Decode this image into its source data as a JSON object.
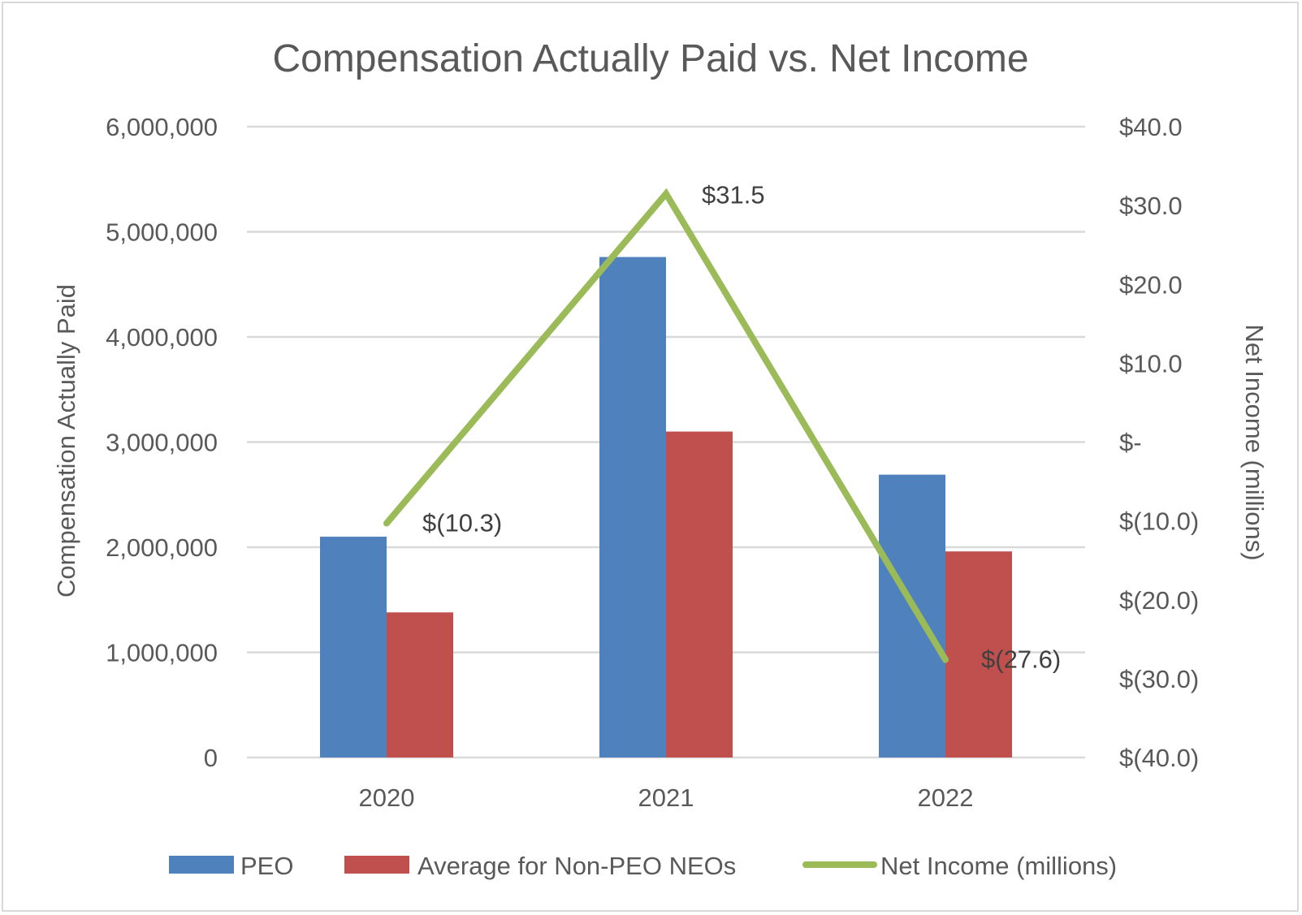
{
  "chart_data": {
    "type": "bar",
    "title": "Compensation Actually Paid vs. Net Income",
    "categories": [
      "2020",
      "2021",
      "2022"
    ],
    "y_left": {
      "label": "Compensation Actually Paid",
      "range": [
        0,
        6000000
      ],
      "ticks": [
        0,
        1000000,
        2000000,
        3000000,
        4000000,
        5000000,
        6000000
      ],
      "tick_labels": [
        "0",
        "1,000,000",
        "2,000,000",
        "3,000,000",
        "4,000,000",
        "5,000,000",
        "6,000,000"
      ]
    },
    "y_right": {
      "label": "Net Income (millions)",
      "range": [
        -40,
        40
      ],
      "ticks": [
        -40,
        -30,
        -20,
        -10,
        0,
        10,
        20,
        30,
        40
      ],
      "tick_labels": [
        "$(40.0)",
        "$(30.0)",
        "$(20.0)",
        "$(10.0)",
        "$-",
        "$10.0",
        "$20.0",
        "$30.0",
        "$40.0"
      ]
    },
    "series": [
      {
        "name": "PEO",
        "type": "bar",
        "axis": "left",
        "color": "#4f81bd",
        "values": [
          2100000,
          4760000,
          2690000
        ]
      },
      {
        "name": "Average for Non-PEO NEOs",
        "type": "bar",
        "axis": "left",
        "color": "#c0504d",
        "values": [
          1380000,
          3100000,
          1960000
        ]
      },
      {
        "name": "Net Income (millions)",
        "type": "line",
        "axis": "right",
        "color": "#9bbb59",
        "values": [
          -10.3,
          31.5,
          -27.6
        ],
        "data_labels": [
          "$(10.3)",
          "$31.5",
          "$(27.6)"
        ]
      }
    ],
    "grid": true,
    "legend": "bottom"
  }
}
